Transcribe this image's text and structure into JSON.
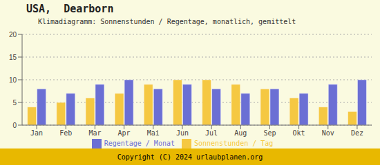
{
  "chart_data": {
    "type": "bar",
    "title": "USA,  Dearborn",
    "subtitle": "Klimadiagramm: Sonnenstunden / Regentage, monatlich, gemittelt",
    "annotations": [
      "Copyright (C) 2024 urlaubplanen.org"
    ],
    "categories": [
      "Jan",
      "Feb",
      "Mar",
      "Apr",
      "Mai",
      "Jun",
      "Jul",
      "Aug",
      "Sep",
      "Okt",
      "Nov",
      "Dez"
    ],
    "series": [
      {
        "name": "Sonnenstunden / Tag",
        "color": "#F5C842",
        "values": [
          4,
          5,
          6,
          7,
          9,
          10,
          10,
          9,
          8,
          6,
          4,
          3
        ]
      },
      {
        "name": "Regentage / Monat",
        "color": "#6B6FD4",
        "values": [
          8,
          7,
          9,
          10,
          8,
          9,
          8,
          7,
          8,
          7,
          9,
          10
        ]
      }
    ],
    "ylim": [
      0,
      20
    ],
    "yticks": [
      0,
      5,
      10,
      15,
      20
    ],
    "grid": true,
    "legend": "bottom"
  }
}
